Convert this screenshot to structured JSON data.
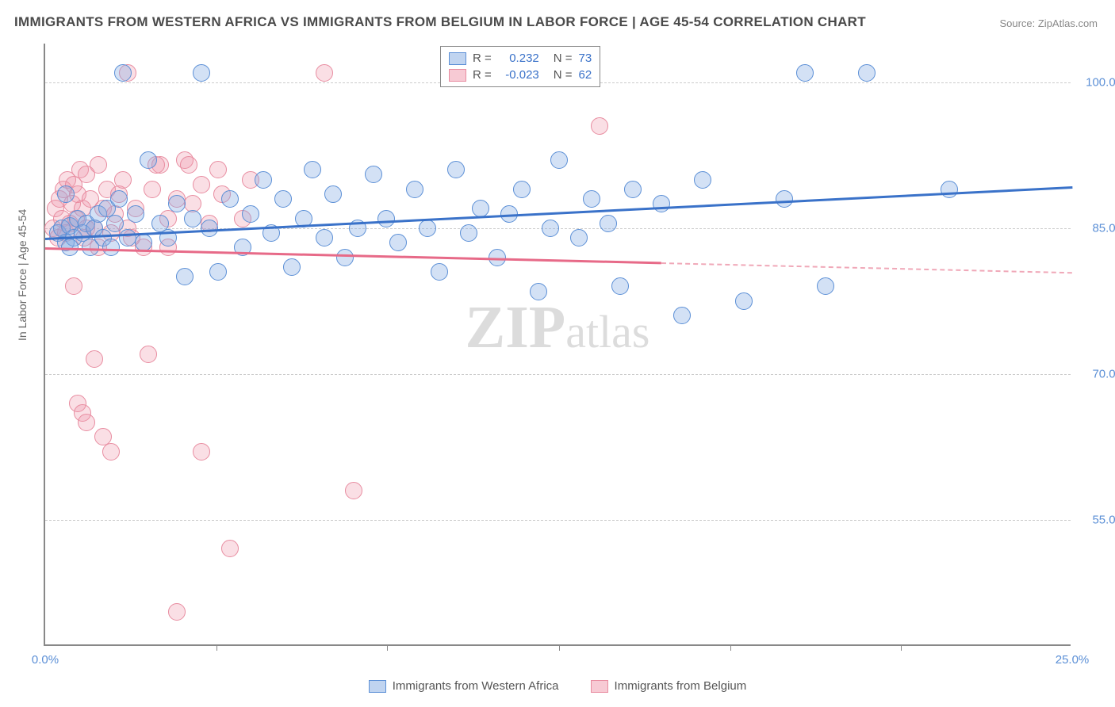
{
  "title": "IMMIGRANTS FROM WESTERN AFRICA VS IMMIGRANTS FROM BELGIUM IN LABOR FORCE | AGE 45-54 CORRELATION CHART",
  "source": "Source: ZipAtlas.com",
  "y_axis_label": "In Labor Force | Age 45-54",
  "watermark": {
    "part1": "ZIP",
    "part2": "atlas"
  },
  "chart": {
    "type": "scatter",
    "xlim": [
      0.0,
      25.0
    ],
    "ylim": [
      42.0,
      104.0
    ],
    "x_ticks": [
      0.0,
      25.0
    ],
    "x_tick_labels": [
      "0.0%",
      "25.0%"
    ],
    "x_minor_ticks": [
      4.17,
      8.33,
      12.5,
      16.67,
      20.83
    ],
    "y_ticks": [
      55.0,
      70.0,
      85.0,
      100.0
    ],
    "y_tick_labels": [
      "55.0%",
      "70.0%",
      "85.0%",
      "100.0%"
    ],
    "background_color": "#ffffff",
    "grid_color": "#cccccc",
    "point_radius": 11,
    "series": [
      {
        "name": "Immigrants from Western Africa",
        "color_fill": "rgba(130,170,225,0.35)",
        "color_stroke": "#5b8fd6",
        "correlation_R": "0.232",
        "N": "73",
        "trend": {
          "x1": 0.0,
          "y1": 84.0,
          "x2": 25.0,
          "y2": 89.3,
          "color": "#3a72c9",
          "width": 2.5
        },
        "points": [
          [
            0.3,
            84.5
          ],
          [
            0.4,
            85.0
          ],
          [
            0.5,
            83.5
          ],
          [
            0.6,
            85.2
          ],
          [
            0.7,
            84.0
          ],
          [
            0.8,
            86.0
          ],
          [
            0.9,
            84.5
          ],
          [
            1.0,
            85.5
          ],
          [
            1.1,
            83.0
          ],
          [
            1.2,
            85.0
          ],
          [
            1.3,
            86.5
          ],
          [
            1.4,
            84.0
          ],
          [
            1.5,
            87.0
          ],
          [
            1.6,
            83.0
          ],
          [
            1.7,
            85.5
          ],
          [
            1.8,
            88.0
          ],
          [
            2.0,
            84.0
          ],
          [
            2.2,
            86.5
          ],
          [
            2.4,
            83.5
          ],
          [
            2.5,
            92.0
          ],
          [
            2.8,
            85.5
          ],
          [
            3.0,
            84.0
          ],
          [
            3.2,
            87.5
          ],
          [
            3.4,
            80.0
          ],
          [
            3.6,
            86.0
          ],
          [
            4.0,
            85.0
          ],
          [
            4.2,
            80.5
          ],
          [
            4.5,
            88.0
          ],
          [
            4.8,
            83.0
          ],
          [
            5.0,
            86.5
          ],
          [
            5.3,
            90.0
          ],
          [
            5.5,
            84.5
          ],
          [
            5.8,
            88.0
          ],
          [
            6.0,
            81.0
          ],
          [
            6.3,
            86.0
          ],
          [
            6.5,
            91.0
          ],
          [
            6.8,
            84.0
          ],
          [
            7.0,
            88.5
          ],
          [
            7.3,
            82.0
          ],
          [
            7.6,
            85.0
          ],
          [
            8.0,
            90.5
          ],
          [
            8.3,
            86.0
          ],
          [
            8.6,
            83.5
          ],
          [
            9.0,
            89.0
          ],
          [
            9.3,
            85.0
          ],
          [
            9.6,
            80.5
          ],
          [
            10.0,
            91.0
          ],
          [
            10.3,
            84.5
          ],
          [
            10.6,
            87.0
          ],
          [
            11.0,
            82.0
          ],
          [
            11.3,
            86.5
          ],
          [
            11.6,
            89.0
          ],
          [
            12.0,
            78.5
          ],
          [
            12.3,
            85.0
          ],
          [
            12.5,
            92.0
          ],
          [
            13.0,
            84.0
          ],
          [
            13.3,
            88.0
          ],
          [
            13.7,
            85.5
          ],
          [
            14.0,
            79.0
          ],
          [
            14.3,
            89.0
          ],
          [
            15.0,
            87.5
          ],
          [
            15.5,
            76.0
          ],
          [
            16.0,
            90.0
          ],
          [
            17.0,
            77.5
          ],
          [
            18.0,
            88.0
          ],
          [
            18.5,
            101.0
          ],
          [
            19.0,
            79.0
          ],
          [
            20.0,
            101.0
          ],
          [
            22.0,
            89.0
          ],
          [
            1.9,
            101.0
          ],
          [
            3.8,
            101.0
          ],
          [
            0.5,
            88.5
          ],
          [
            0.6,
            83.0
          ]
        ]
      },
      {
        "name": "Immigrants from Belgium",
        "color_fill": "rgba(240,150,170,0.30)",
        "color_stroke": "#e88ca0",
        "correlation_R": "-0.023",
        "N": "62",
        "trend": {
          "x1": 0.0,
          "y1": 83.0,
          "x2": 15.0,
          "y2": 81.5,
          "x2_dash": 25.0,
          "y2_dash": 80.5,
          "color": "#e76a88",
          "width": 2.5
        },
        "points": [
          [
            0.2,
            85.0
          ],
          [
            0.25,
            87.0
          ],
          [
            0.3,
            84.0
          ],
          [
            0.35,
            88.0
          ],
          [
            0.4,
            86.0
          ],
          [
            0.45,
            89.0
          ],
          [
            0.5,
            84.5
          ],
          [
            0.55,
            90.0
          ],
          [
            0.6,
            85.5
          ],
          [
            0.65,
            87.5
          ],
          [
            0.7,
            89.5
          ],
          [
            0.75,
            86.0
          ],
          [
            0.8,
            88.5
          ],
          [
            0.85,
            91.0
          ],
          [
            0.9,
            87.0
          ],
          [
            0.95,
            84.0
          ],
          [
            1.0,
            90.5
          ],
          [
            1.1,
            88.0
          ],
          [
            1.2,
            85.0
          ],
          [
            1.3,
            91.5
          ],
          [
            1.4,
            87.0
          ],
          [
            1.5,
            89.0
          ],
          [
            1.6,
            84.5
          ],
          [
            1.7,
            86.5
          ],
          [
            1.8,
            88.5
          ],
          [
            1.9,
            90.0
          ],
          [
            2.0,
            85.0
          ],
          [
            2.2,
            87.0
          ],
          [
            2.4,
            83.0
          ],
          [
            2.6,
            89.0
          ],
          [
            2.8,
            91.5
          ],
          [
            3.0,
            86.0
          ],
          [
            3.2,
            88.0
          ],
          [
            3.4,
            92.0
          ],
          [
            3.6,
            87.5
          ],
          [
            3.8,
            89.5
          ],
          [
            4.0,
            85.5
          ],
          [
            4.2,
            91.0
          ],
          [
            0.7,
            79.0
          ],
          [
            0.8,
            67.0
          ],
          [
            0.9,
            66.0
          ],
          [
            1.0,
            65.0
          ],
          [
            1.2,
            71.5
          ],
          [
            1.4,
            63.5
          ],
          [
            1.6,
            62.0
          ],
          [
            2.5,
            72.0
          ],
          [
            2.7,
            91.5
          ],
          [
            3.0,
            83.0
          ],
          [
            3.5,
            91.5
          ],
          [
            3.8,
            62.0
          ],
          [
            4.3,
            88.5
          ],
          [
            4.5,
            52.0
          ],
          [
            4.8,
            86.0
          ],
          [
            5.0,
            90.0
          ],
          [
            2.0,
            101.0
          ],
          [
            3.2,
            45.5
          ],
          [
            6.8,
            101.0
          ],
          [
            7.5,
            58.0
          ],
          [
            13.5,
            95.5
          ],
          [
            1.0,
            85.0
          ],
          [
            1.3,
            83.0
          ],
          [
            2.1,
            84.0
          ]
        ]
      }
    ]
  },
  "legend_top": {
    "rows": [
      {
        "swatch": "blue",
        "r_label": "R =",
        "r_value": "0.232",
        "n_label": "N =",
        "n_value": "73"
      },
      {
        "swatch": "pink",
        "r_label": "R =",
        "r_value": "-0.023",
        "n_label": "N =",
        "n_value": "62"
      }
    ]
  },
  "legend_bottom": {
    "items": [
      {
        "swatch": "blue",
        "label": "Immigrants from Western Africa"
      },
      {
        "swatch": "pink",
        "label": "Immigrants from Belgium"
      }
    ]
  }
}
